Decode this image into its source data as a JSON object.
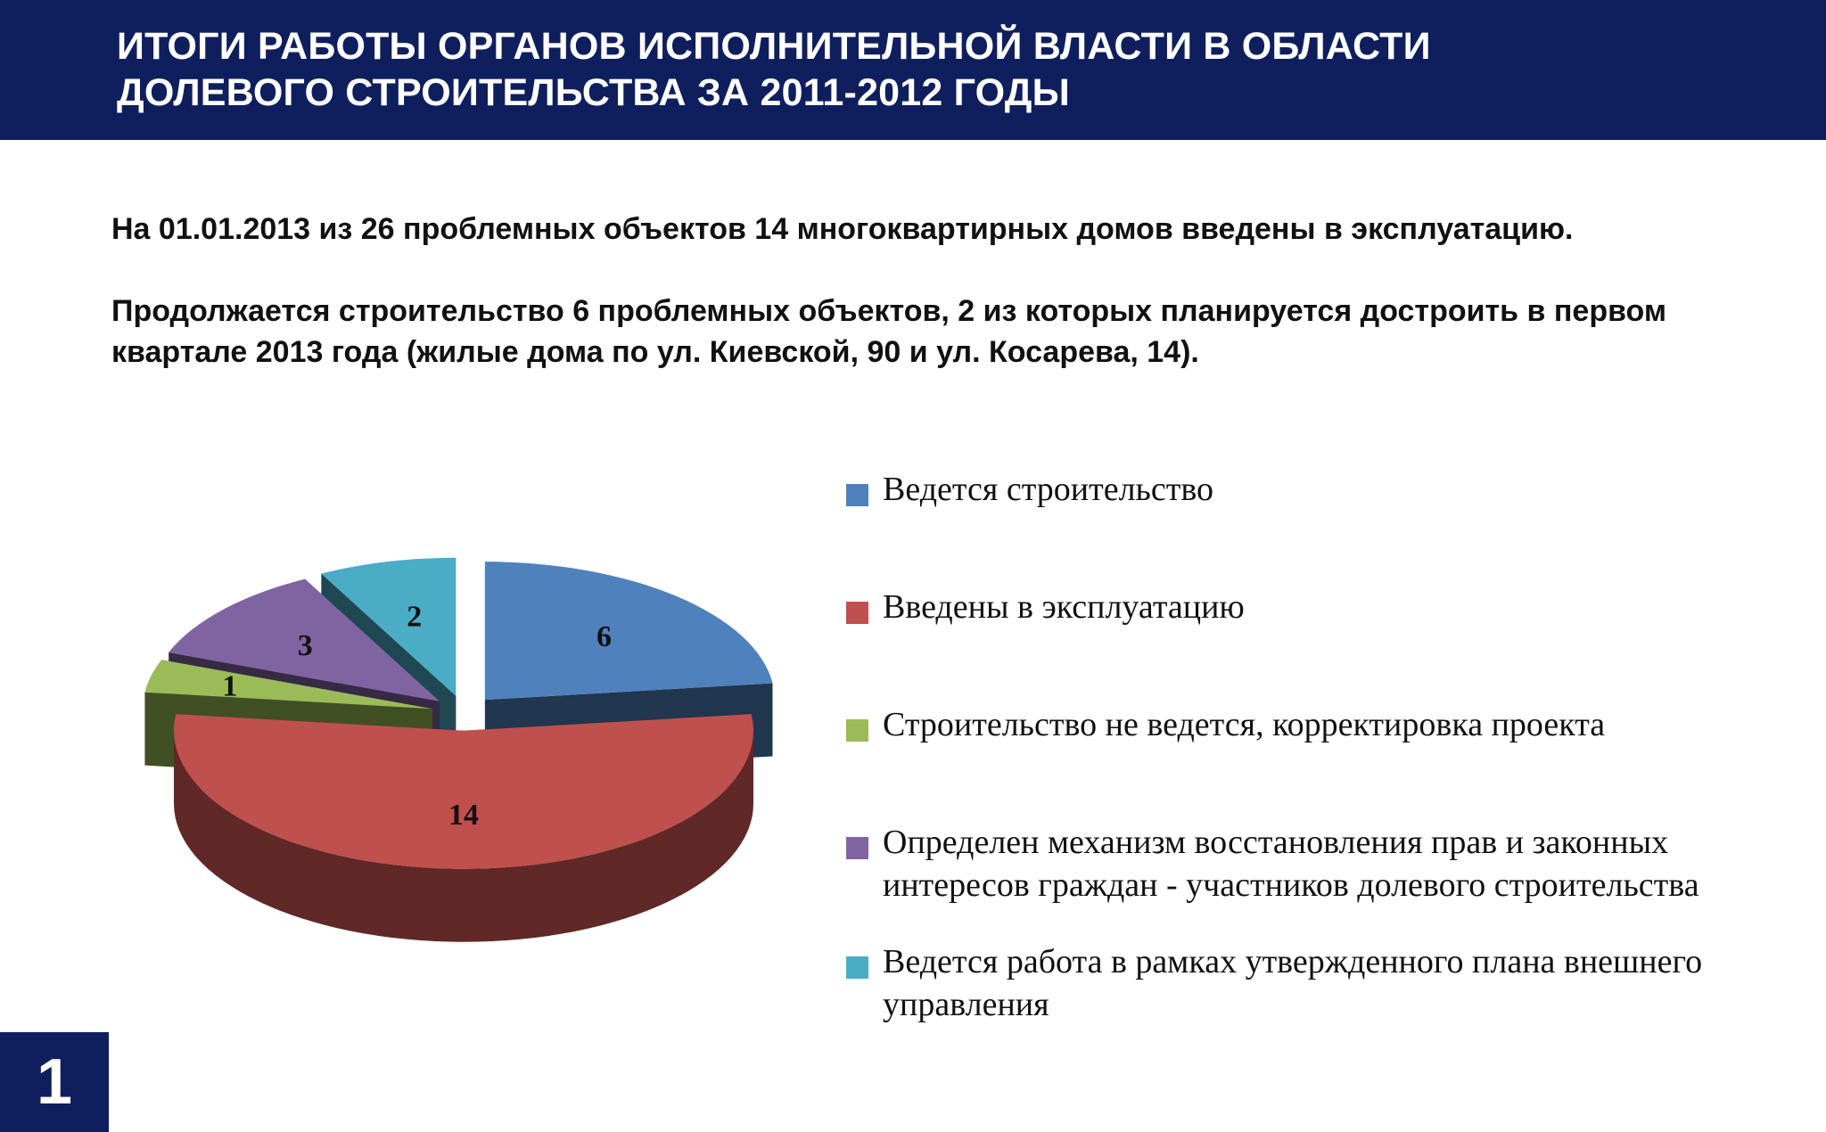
{
  "header": {
    "title": "ИТОГИ  РАБОТЫ ОРГАНОВ ИСПОЛНИТЕЛЬНОЙ ВЛАСТИ В ОБЛАСТИ\nДОЛЕВОГО СТРОИТЕЛЬСТВА ЗА 2011-2012 ГОДЫ"
  },
  "text": {
    "paragraph1": "На 01.01.2013 из 26 проблемных объектов 14 многоквартирных домов введены в эксплуатацию.",
    "paragraph2": "Продолжается строительство 6 проблемных объектов, 2 из которых планируется достроить в первом квартале 2013 года (жилые дома по ул. Киевской, 90 и ул. Косарева, 14)."
  },
  "chart_data": {
    "type": "pie",
    "style": "3d-exploded",
    "slices": [
      {
        "label": "Ведется строительство",
        "value": 6,
        "color": "#4f81bd"
      },
      {
        "label": "Введены в эксплуатацию",
        "value": 14,
        "color": "#c0504d"
      },
      {
        "label": "Строительство не ведется, корректировка проекта",
        "value": 1,
        "color": "#9bbb59"
      },
      {
        "label": "Определен механизм восстановления прав и законных интересов  граждан - участников долевого строительства",
        "value": 3,
        "color": "#8064a2"
      },
      {
        "label": "Ведется работа в рамках утвержденного плана внешнего управления",
        "value": 2,
        "color": "#4bacc6"
      }
    ],
    "legend_position": "right"
  },
  "page_number": "1",
  "colors": {
    "header_bg": "#0f1f5e",
    "badge_bg": "#0f1f5e",
    "text": "#111111"
  }
}
